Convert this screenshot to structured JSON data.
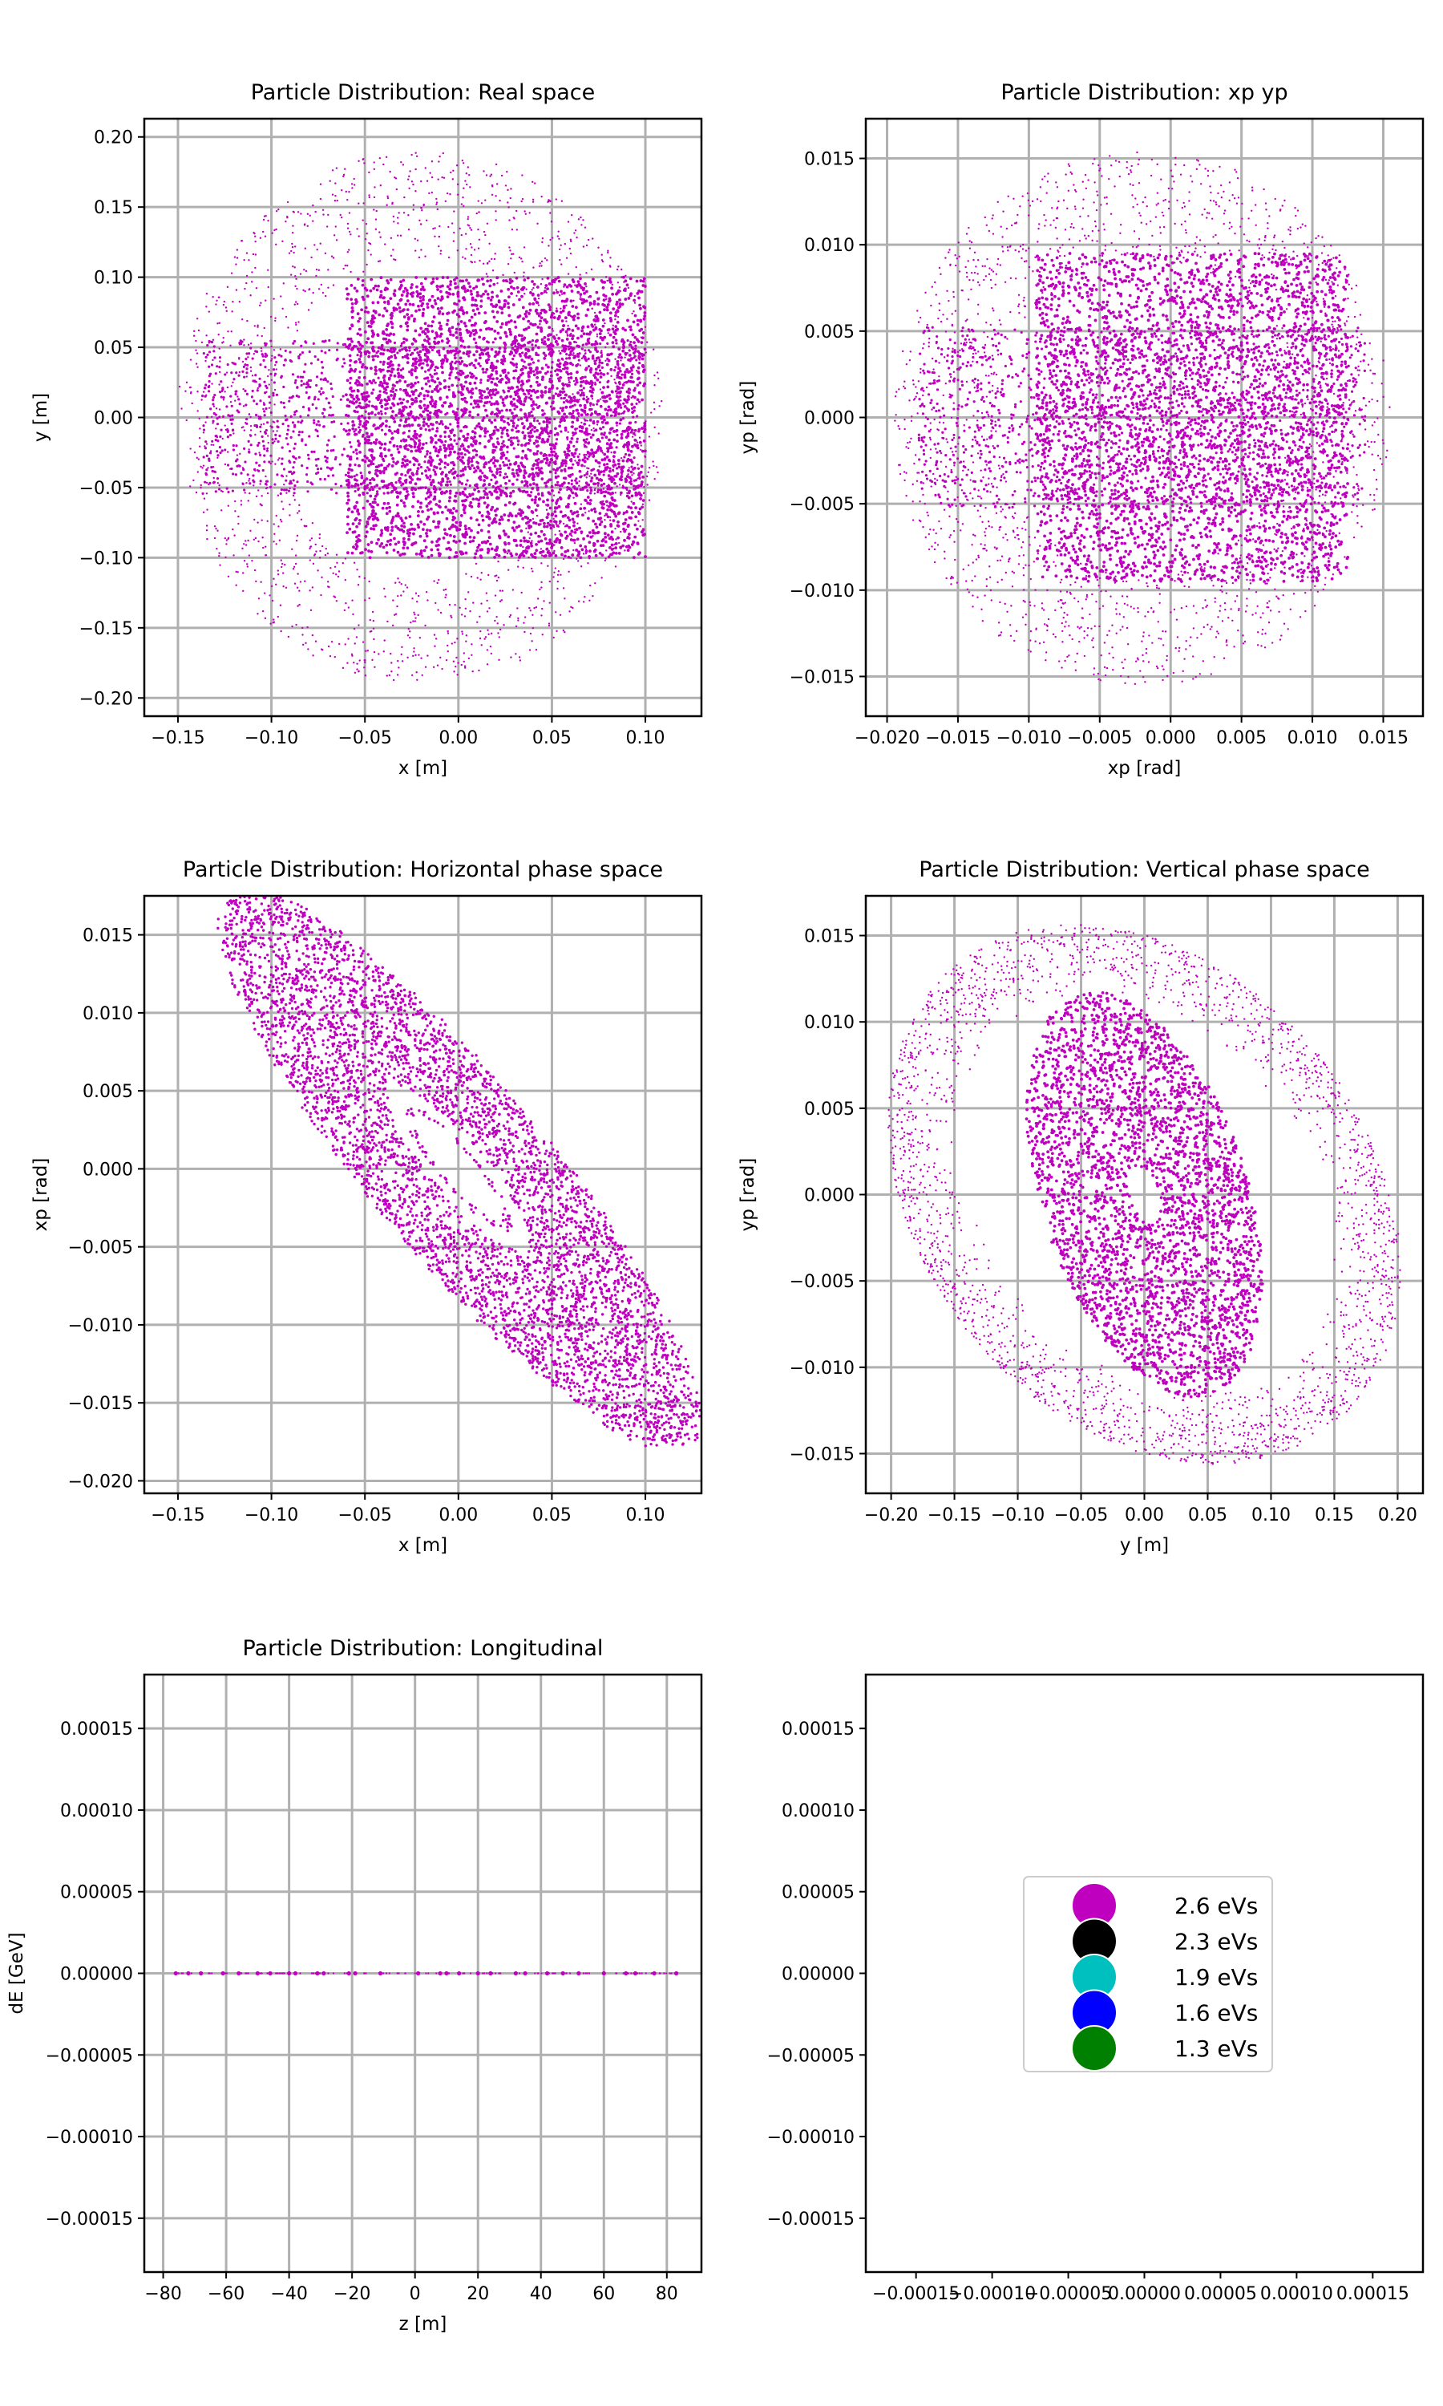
{
  "figure": {
    "panels": [
      {
        "id": "real",
        "title": "Particle Distribution: Real space",
        "xlabel": "x [m]",
        "ylabel": "y [m]",
        "xlim": [
          -0.168,
          0.13
        ],
        "ylim": [
          -0.213,
          0.213
        ],
        "xticks": [
          -0.15,
          -0.1,
          -0.05,
          0.0,
          0.05,
          0.1
        ],
        "xticklabels": [
          "−0.15",
          "−0.10",
          "−0.05",
          "0.00",
          "0.05",
          "0.10"
        ],
        "yticks": [
          -0.2,
          -0.15,
          -0.1,
          -0.05,
          0.0,
          0.05,
          0.1,
          0.15,
          0.2
        ],
        "yticklabels": [
          "−0.20",
          "−0.15",
          "−0.10",
          "−0.05",
          "0.00",
          "0.05",
          "0.10",
          "0.15",
          "0.20"
        ],
        "grid": true
      },
      {
        "id": "xpyp",
        "title": "Particle Distribution: xp yp",
        "xlabel": "xp [rad]",
        "ylabel": "yp [rad]",
        "xlim": [
          -0.0215,
          0.0178
        ],
        "ylim": [
          -0.0173,
          0.0173
        ],
        "xticks": [
          -0.02,
          -0.015,
          -0.01,
          -0.005,
          0.0,
          0.005,
          0.01,
          0.015
        ],
        "xticklabels": [
          "−0.020",
          "−0.015",
          "−0.010",
          "−0.005",
          "0.000",
          "0.005",
          "0.010",
          "0.015"
        ],
        "yticks": [
          -0.015,
          -0.01,
          -0.005,
          0.0,
          0.005,
          0.01,
          0.015
        ],
        "yticklabels": [
          "−0.015",
          "−0.010",
          "−0.005",
          "0.000",
          "0.005",
          "0.010",
          "0.015"
        ],
        "grid": true
      },
      {
        "id": "horizontal",
        "title": "Particle Distribution: Horizontal phase space",
        "xlabel": "x [m]",
        "ylabel": "xp [rad]",
        "xlim": [
          -0.168,
          0.13
        ],
        "ylim": [
          -0.0208,
          0.0175
        ],
        "xticks": [
          -0.15,
          -0.1,
          -0.05,
          0.0,
          0.05,
          0.1
        ],
        "xticklabels": [
          "−0.15",
          "−0.10",
          "−0.05",
          "0.00",
          "0.05",
          "0.10"
        ],
        "yticks": [
          -0.02,
          -0.015,
          -0.01,
          -0.005,
          0.0,
          0.005,
          0.01,
          0.015
        ],
        "yticklabels": [
          "−0.020",
          "−0.015",
          "−0.010",
          "−0.005",
          "0.000",
          "0.005",
          "0.010",
          "0.015"
        ],
        "grid": true
      },
      {
        "id": "vertical",
        "title": "Particle Distribution: Vertical phase space",
        "xlabel": "y [m]",
        "ylabel": "yp [rad]",
        "xlim": [
          -0.22,
          0.22
        ],
        "ylim": [
          -0.0173,
          0.0173
        ],
        "xticks": [
          -0.2,
          -0.15,
          -0.1,
          -0.05,
          0.0,
          0.05,
          0.1,
          0.15,
          0.2
        ],
        "xticklabels": [
          "−0.20",
          "−0.15",
          "−0.10",
          "−0.05",
          "0.00",
          "0.05",
          "0.10",
          "0.15",
          "0.20"
        ],
        "yticks": [
          -0.015,
          -0.01,
          -0.005,
          0.0,
          0.005,
          0.01,
          0.015
        ],
        "yticklabels": [
          "−0.015",
          "−0.010",
          "−0.005",
          "0.000",
          "0.005",
          "0.010",
          "0.015"
        ],
        "grid": true
      },
      {
        "id": "longitudinal",
        "title": "Particle Distribution: Longitudinal",
        "xlabel": "z [m]",
        "ylabel": "dE [GeV]",
        "xlim": [
          -86,
          91
        ],
        "ylim": [
          -0.000183,
          0.000183
        ],
        "xticks": [
          -80,
          -60,
          -40,
          -20,
          0,
          20,
          40,
          60,
          80
        ],
        "xticklabels": [
          "−80",
          "−60",
          "−40",
          "−20",
          "0",
          "20",
          "40",
          "60",
          "80"
        ],
        "yticks": [
          -0.00015,
          -0.0001,
          -5e-05,
          0.0,
          5e-05,
          0.0001,
          0.00015
        ],
        "yticklabels": [
          "−0.00015",
          "−0.00010",
          "−0.00005",
          "0.00000",
          "0.00005",
          "0.00010",
          "0.00015"
        ],
        "grid": true
      },
      {
        "id": "legend",
        "title": "",
        "xlabel": "",
        "ylabel": "",
        "xlim": [
          -0.000183,
          0.000183
        ],
        "ylim": [
          -0.000183,
          0.000183
        ],
        "xticks": [
          -0.00015,
          -0.0001,
          -5e-05,
          0.0,
          5e-05,
          0.0001,
          0.00015
        ],
        "xticklabels": [
          "−0.00015",
          "−0.00010",
          "−0.00005",
          "0.00000",
          "0.00005",
          "0.00010",
          "0.00015"
        ],
        "yticks": [
          -0.00015,
          -0.0001,
          -5e-05,
          0.0,
          5e-05,
          0.0001,
          0.00015
        ],
        "yticklabels": [
          "−0.00015",
          "−0.00010",
          "−0.00005",
          "0.00000",
          "0.00005",
          "0.00010",
          "0.00015"
        ],
        "grid": false
      }
    ],
    "legend": {
      "placement": "center",
      "entries": [
        {
          "label": "2.6 eVs",
          "color": "#bf00bf"
        },
        {
          "label": "2.3 eVs",
          "color": "#000000"
        },
        {
          "label": "1.9 eVs",
          "color": "#00bfbf"
        },
        {
          "label": "1.6 eVs",
          "color": "#0000ff"
        },
        {
          "label": "1.3 eVs",
          "color": "#008000"
        }
      ]
    }
  },
  "chart_data": [
    {
      "type": "scatter",
      "title": "Particle Distribution: Real space",
      "xlabel": "x [m]",
      "ylabel": "y [m]",
      "xlim": [
        -0.168,
        0.13
      ],
      "ylim": [
        -0.213,
        0.213
      ],
      "grid": true,
      "color": "#bf00bf",
      "core": {
        "x": [
          -0.06,
          0.1
        ],
        "y": [
          -0.1,
          0.1
        ]
      },
      "halo": {
        "x": [
          -0.15,
          0.11
        ],
        "y": [
          -0.19,
          0.19
        ]
      }
    },
    {
      "type": "scatter",
      "title": "Particle Distribution: xp yp",
      "xlabel": "xp [rad]",
      "ylabel": "yp [rad]",
      "xlim": [
        -0.0215,
        0.0178
      ],
      "ylim": [
        -0.0173,
        0.0173
      ],
      "grid": true,
      "color": "#bf00bf",
      "core": {
        "x": [
          -0.0095,
          0.0125
        ],
        "y": [
          -0.0095,
          0.0095
        ]
      },
      "halo": {
        "x": [
          -0.0195,
          0.0155
        ],
        "y": [
          -0.0155,
          0.0155
        ]
      }
    },
    {
      "type": "scatter",
      "title": "Particle Distribution: Horizontal phase space",
      "xlabel": "x [m]",
      "ylabel": "xp [rad]",
      "xlim": [
        -0.168,
        0.13
      ],
      "ylim": [
        -0.0208,
        0.0175
      ],
      "grid": true,
      "color": "#bf00bf",
      "outer_boundary": [
        [
          -0.15,
          0.0152
        ],
        [
          0.1,
          -0.0188
        ]
      ],
      "hole": {
        "x_center": 0.0,
        "y_center": 0.0,
        "x_radius": 0.01,
        "y_radius": 0.0015
      }
    },
    {
      "type": "scatter",
      "title": "Particle Distribution: Vertical phase space",
      "xlabel": "y [m]",
      "ylabel": "yp [rad]",
      "xlim": [
        -0.22,
        0.22
      ],
      "ylim": [
        -0.0173,
        0.0173
      ],
      "grid": true,
      "color": "#bf00bf",
      "outer_boundary": {
        "y": [
          -0.2,
          0.2
        ],
        "yp": [
          -0.0155,
          0.0155
        ]
      },
      "hole": {
        "x_center": 0.0,
        "y_center": 0.0,
        "x_radius": 0.012,
        "y_radius": 0.0018
      }
    },
    {
      "type": "scatter",
      "title": "Particle Distribution: Longitudinal",
      "xlabel": "z [m]",
      "ylabel": "dE [GeV]",
      "xlim": [
        -86,
        91
      ],
      "ylim": [
        -0.000183,
        0.000183
      ],
      "grid": true,
      "color": "#bf00bf",
      "x": [
        -76,
        -72,
        -68,
        -61,
        -56,
        -50,
        -46,
        -40,
        -38,
        -31,
        -29,
        -21,
        -19,
        -11,
        1,
        8,
        10,
        14,
        20,
        24,
        32,
        35,
        42,
        47,
        52,
        60,
        67,
        70,
        76,
        83
      ],
      "y": [
        0,
        0,
        0,
        0,
        0,
        0,
        0,
        0,
        0,
        0,
        0,
        0,
        0,
        0,
        0,
        0,
        0,
        0,
        0,
        0,
        0,
        0,
        0,
        0,
        0,
        0,
        0,
        0,
        0,
        0
      ]
    }
  ]
}
